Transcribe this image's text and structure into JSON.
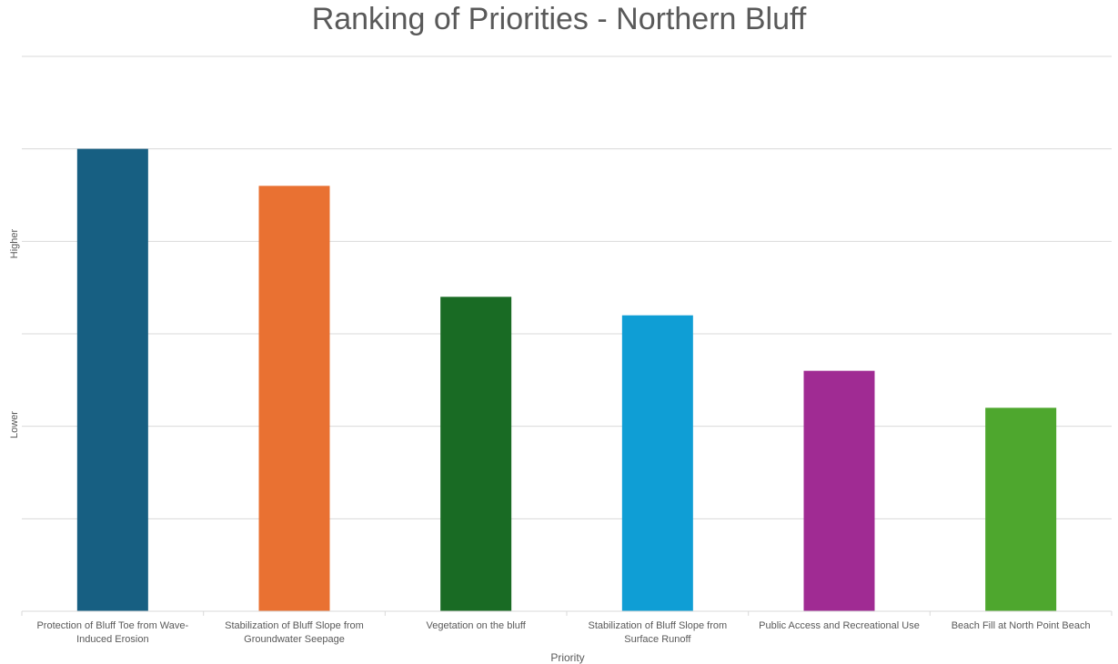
{
  "chart_data": {
    "type": "bar",
    "title": "Ranking of Priorities - Northern Bluff",
    "xlabel": "Priority",
    "ylabel": "",
    "y_annotations": [
      "Higher",
      "Lower"
    ],
    "categories": [
      "Protection of Bluff Toe from Wave-Induced Erosion",
      "Stabilization of Bluff Slope from Groundwater Seepage",
      "Vegetation on the bluff",
      "Stabilization of Bluff Slope from Surface Runoff",
      "Public Access and Recreational Use",
      "Beach Fill at North Point Beach"
    ],
    "values": [
      5,
      4.6,
      3.4,
      3.2,
      2.6,
      2.2
    ],
    "colors": [
      "#175f82",
      "#e97132",
      "#196b24",
      "#0f9ed5",
      "#a02b93",
      "#4ea72e"
    ],
    "ylim": [
      0,
      6
    ],
    "grid": true,
    "legend": "none"
  }
}
